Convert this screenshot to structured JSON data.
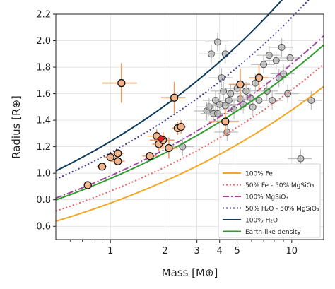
{
  "chart_data": {
    "type": "scatter",
    "title": "",
    "xlabel": "Mass [M⊕]",
    "ylabel": "Radius [R⊕]",
    "xscale": "log",
    "xlim": [
      0.5,
      15
    ],
    "ylim": [
      0.5,
      2.2
    ],
    "x_tick_labels": [
      {
        "value": 1,
        "label": "1"
      },
      {
        "value": 2,
        "label": "2"
      },
      {
        "value": 3,
        "label": "3"
      },
      {
        "value": 4,
        "label": "4"
      },
      {
        "value": 5,
        "label": "5"
      },
      {
        "value": 10,
        "label": "10"
      }
    ],
    "y_tick_labels": [
      {
        "value": 0.6,
        "label": "0.6"
      },
      {
        "value": 0.8,
        "label": "0.8"
      },
      {
        "value": 1.0,
        "label": "1.0"
      },
      {
        "value": 1.2,
        "label": "1.2"
      },
      {
        "value": 1.4,
        "label": "1.4"
      },
      {
        "value": 1.6,
        "label": "1.6"
      },
      {
        "value": 1.8,
        "label": "1.8"
      },
      {
        "value": 2.0,
        "label": "2.0"
      },
      {
        "value": 2.2,
        "label": "2.2"
      }
    ],
    "grid": true,
    "legend_position": "lower right",
    "curves": [
      {
        "name": "100% Fe",
        "color": "#f5a623",
        "dash": "solid",
        "r_at_1": 0.775,
        "exponent": 0.28
      },
      {
        "name": "50% Fe - 50% MgSiO₃",
        "color": "#f0605d",
        "dash": "dotted",
        "r_at_1": 0.865,
        "exponent": 0.275
      },
      {
        "name": "100% MgSiO₃",
        "color": "#a0479a",
        "dash": "dashdot",
        "r_at_1": 0.98,
        "exponent": 0.27
      },
      {
        "name": "50% H₂O - 50% MgSiO₃",
        "color": "#3d3d9c",
        "dash": "dotted",
        "r_at_1": 1.155,
        "exponent": 0.275
      },
      {
        "name": "100% H₂O",
        "color": "#0c3a57",
        "dash": "solid",
        "r_at_1": 1.24,
        "exponent": 0.285
      },
      {
        "name": "Earth-like density",
        "color": "#2f9e2f",
        "dash": "solid",
        "r_at_1": 0.96,
        "exponent": 0.265
      }
    ],
    "highlighted_points": [
      {
        "x": 0.75,
        "y": 0.91,
        "xerr": 0.03,
        "yerr": 0.02
      },
      {
        "x": 0.9,
        "y": 1.05,
        "xerr": 0.06,
        "yerr": 0.02
      },
      {
        "x": 1.0,
        "y": 1.12,
        "xerr": 0.08,
        "yerr": 0.03
      },
      {
        "x": 1.1,
        "y": 1.09,
        "xerr": 0.1,
        "yerr": 0.03
      },
      {
        "x": 1.1,
        "y": 1.15,
        "xerr": 0.08,
        "yerr": 0.03
      },
      {
        "x": 1.15,
        "y": 1.68,
        "xerr": 0.25,
        "yerr": 0.15
      },
      {
        "x": 1.65,
        "y": 1.13,
        "xerr": 0.15,
        "yerr": 0.03
      },
      {
        "x": 1.8,
        "y": 1.28,
        "xerr": 0.2,
        "yerr": 0.05
      },
      {
        "x": 1.85,
        "y": 1.22,
        "xerr": 0.15,
        "yerr": 0.05
      },
      {
        "x": 1.95,
        "y": 1.25,
        "xerr": 0.3,
        "yerr": 0.06
      },
      {
        "x": 2.1,
        "y": 1.19,
        "xerr": 0.25,
        "yerr": 0.08
      },
      {
        "x": 2.25,
        "y": 1.57,
        "xerr": 0.35,
        "yerr": 0.12
      },
      {
        "x": 2.35,
        "y": 1.34,
        "xerr": 0.15,
        "yerr": 0.05
      },
      {
        "x": 2.45,
        "y": 1.35,
        "xerr": 0.15,
        "yerr": 0.05
      },
      {
        "x": 4.3,
        "y": 1.39,
        "xerr": 0.8,
        "yerr": 0.1
      },
      {
        "x": 5.2,
        "y": 1.67,
        "xerr": 0.7,
        "yerr": 0.12
      },
      {
        "x": 6.6,
        "y": 1.72,
        "xerr": 0.8,
        "yerr": 0.1
      }
    ],
    "red_point": {
      "x": 1.9,
      "y": 1.26,
      "marker": "diamond",
      "color": "#e02020"
    },
    "background_points": [
      {
        "x": 2.5,
        "y": 1.2
      },
      {
        "x": 3.4,
        "y": 1.47
      },
      {
        "x": 3.5,
        "y": 1.5
      },
      {
        "x": 3.6,
        "y": 1.9
      },
      {
        "x": 3.7,
        "y": 1.45
      },
      {
        "x": 3.8,
        "y": 1.55
      },
      {
        "x": 3.9,
        "y": 1.45
      },
      {
        "x": 3.9,
        "y": 1.99
      },
      {
        "x": 4.0,
        "y": 1.52
      },
      {
        "x": 4.1,
        "y": 1.72
      },
      {
        "x": 4.2,
        "y": 1.62
      },
      {
        "x": 4.3,
        "y": 1.51
      },
      {
        "x": 4.3,
        "y": 1.9
      },
      {
        "x": 4.4,
        "y": 1.31
      },
      {
        "x": 4.5,
        "y": 1.55
      },
      {
        "x": 4.6,
        "y": 1.6
      },
      {
        "x": 4.8,
        "y": 1.48
      },
      {
        "x": 5.0,
        "y": 1.64
      },
      {
        "x": 5.2,
        "y": 1.56
      },
      {
        "x": 5.4,
        "y": 1.52
      },
      {
        "x": 5.6,
        "y": 1.62
      },
      {
        "x": 5.9,
        "y": 1.57
      },
      {
        "x": 6.1,
        "y": 1.5
      },
      {
        "x": 6.3,
        "y": 1.68
      },
      {
        "x": 6.6,
        "y": 1.55
      },
      {
        "x": 7.0,
        "y": 1.82
      },
      {
        "x": 7.3,
        "y": 1.62
      },
      {
        "x": 7.5,
        "y": 1.89
      },
      {
        "x": 7.8,
        "y": 1.55
      },
      {
        "x": 8.2,
        "y": 1.85
      },
      {
        "x": 8.5,
        "y": 1.72
      },
      {
        "x": 8.8,
        "y": 1.95
      },
      {
        "x": 9.0,
        "y": 1.75
      },
      {
        "x": 9.5,
        "y": 1.6
      },
      {
        "x": 9.8,
        "y": 1.87
      },
      {
        "x": 11.2,
        "y": 1.11
      },
      {
        "x": 12.8,
        "y": 1.55
      }
    ]
  },
  "colors": {
    "highlight_fill": "#f2b48c",
    "highlight_errorbar": "#ef9a5e",
    "background_point_fill": "#aaaaaa",
    "background_errorbar": "#bdbdbd",
    "grid": "#dddddd"
  }
}
